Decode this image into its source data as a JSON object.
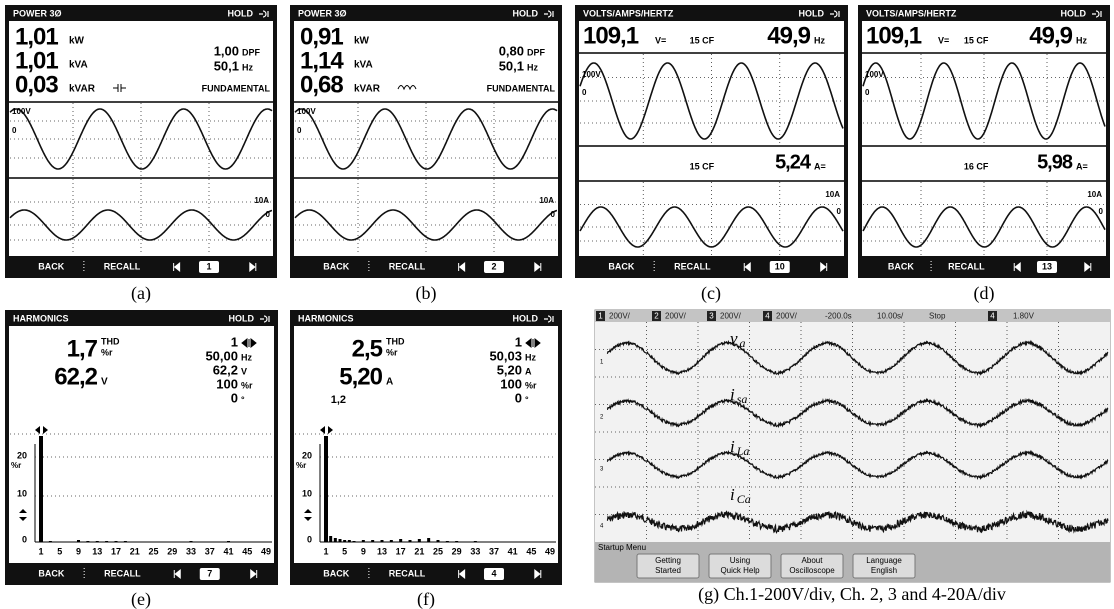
{
  "panels": [
    {
      "caption": "(a)",
      "header": "POWER 3Ø",
      "status": "HOLD",
      "readings": [
        {
          "value": "1,01",
          "unit": "kW"
        },
        {
          "value": "1,01",
          "unit": "kVA"
        },
        {
          "value": "0,03",
          "unit": "kVAR"
        }
      ],
      "right": [
        {
          "value": "1,00",
          "unit": "DPF"
        },
        {
          "value": "50,1",
          "unit": "Hz"
        }
      ],
      "mode": "FUNDAMENTAL",
      "v_scale": "100V",
      "v_zero": "0",
      "i_scale": "10A",
      "i_zero": "0",
      "footer": {
        "back": "BACK",
        "recall": "RECALL",
        "page": "1"
      }
    },
    {
      "caption": "(b)",
      "header": "POWER 3Ø",
      "status": "HOLD",
      "readings": [
        {
          "value": "0,91",
          "unit": "kW"
        },
        {
          "value": "1,14",
          "unit": "kVA"
        },
        {
          "value": "0,68",
          "unit": "kVAR"
        }
      ],
      "right": [
        {
          "value": "0,80",
          "unit": "DPF"
        },
        {
          "value": "50,1",
          "unit": "Hz"
        }
      ],
      "mode": "FUNDAMENTAL",
      "v_scale": "100V",
      "v_zero": "0",
      "i_scale": "10A",
      "i_zero": "0",
      "footer": {
        "back": "BACK",
        "recall": "RECALL",
        "page": "2"
      }
    },
    {
      "caption": "(c)",
      "header": "VOLTS/AMPS/HERTZ",
      "status": "HOLD",
      "voltage": {
        "value": "109,1",
        "unit": "V=",
        "cf": "15 CF"
      },
      "frequency": {
        "value": "49,9",
        "unit": "Hz"
      },
      "current": {
        "value": "5,24",
        "unit": "A=",
        "cf": "15 CF"
      },
      "v_scale": "100V",
      "v_zero": "0",
      "i_scale": "10A",
      "i_zero": "0",
      "footer": {
        "back": "BACK",
        "recall": "RECALL",
        "page": "10"
      }
    },
    {
      "caption": "(d)",
      "header": "VOLTS/AMPS/HERTZ",
      "status": "HOLD",
      "voltage": {
        "value": "109,1",
        "unit": "V=",
        "cf": "15 CF"
      },
      "frequency": {
        "value": "49,9",
        "unit": "Hz"
      },
      "current": {
        "value": "5,98",
        "unit": "A=",
        "cf": "16 CF"
      },
      "v_scale": "100V",
      "v_zero": "0",
      "i_scale": "10A",
      "i_zero": "0",
      "footer": {
        "back": "BACK",
        "recall": "RECALL",
        "page": "13"
      }
    },
    {
      "caption": "(e)",
      "header": "HARMONICS",
      "status": "HOLD",
      "thd": {
        "value": "1,7",
        "label": "THD",
        "unit": "%r"
      },
      "main": {
        "value": "62,2",
        "unit": "V"
      },
      "right": [
        {
          "value": "1"
        },
        {
          "value": "50,00",
          "unit": "Hz"
        },
        {
          "value": "62,2",
          "unit": "V"
        },
        {
          "value": "100",
          "unit": "%r"
        },
        {
          "value": "0",
          "unit": "°"
        }
      ],
      "y_labels": {
        "top": "20",
        "unit": "%r",
        "mid": "10",
        "bottom": "0"
      },
      "x_labels": [
        "1",
        "5",
        "9",
        "13",
        "17",
        "21",
        "25",
        "29",
        "33",
        "37",
        "41",
        "45",
        "49"
      ],
      "footer": {
        "back": "BACK",
        "recall": "RECALL",
        "page": "7"
      }
    },
    {
      "caption": "(f)",
      "header": "HARMONICS",
      "status": "HOLD",
      "thd": {
        "value": "2,5",
        "label": "THD",
        "unit": "%r"
      },
      "main": {
        "value": "5,20",
        "unit": "A"
      },
      "sub": "1,2",
      "right": [
        {
          "value": "1"
        },
        {
          "value": "50,03",
          "unit": "Hz"
        },
        {
          "value": "5,20",
          "unit": "A"
        },
        {
          "value": "100",
          "unit": "%r"
        },
        {
          "value": "0",
          "unit": "°"
        }
      ],
      "y_labels": {
        "top": "20",
        "unit": "%r",
        "mid": "10",
        "bottom": "0"
      },
      "x_labels": [
        "1",
        "5",
        "9",
        "13",
        "17",
        "21",
        "25",
        "29",
        "33",
        "37",
        "41",
        "45",
        "49"
      ],
      "footer": {
        "back": "BACK",
        "recall": "RECALL",
        "page": "4"
      }
    }
  ],
  "scope": {
    "caption": "(g) Ch.1-200V/div, Ch. 2, 3 and 4-20A/div",
    "header": [
      "1",
      "200V/",
      "2",
      "200V/",
      "3",
      "200V/",
      "4",
      "200V/",
      "-200.0s",
      "10.00s/",
      "Stop",
      "4",
      "1.80V"
    ],
    "markers": [
      "1",
      "2",
      "3",
      "4"
    ],
    "traces": [
      {
        "base": "v",
        "sub": "a"
      },
      {
        "base": "i",
        "sub": "sa"
      },
      {
        "base": "i",
        "sub": "La"
      },
      {
        "base": "i",
        "sub": "Ca"
      }
    ],
    "menu_title": "Startup Menu",
    "buttons": [
      [
        "Getting",
        "Started"
      ],
      [
        "Using",
        "Quick Help"
      ],
      [
        "About",
        "Oscilloscope"
      ],
      [
        "Language",
        "English"
      ]
    ]
  }
}
